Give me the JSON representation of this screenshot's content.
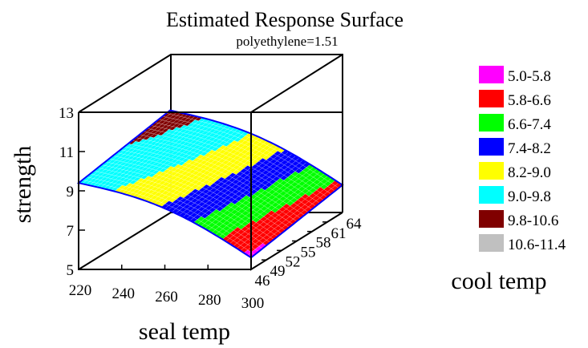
{
  "chart_data": {
    "type": "surface",
    "title": "Estimated Response Surface",
    "subtitle": "polyethylene=1.51",
    "xlabel": "seal temp",
    "ylabel": "cool temp",
    "zlabel": "strength",
    "x_ticks": [
      "220",
      "240",
      "260",
      "280",
      "300"
    ],
    "y_ticks": [
      "46",
      "49",
      "52",
      "55",
      "58",
      "61",
      "64"
    ],
    "z_ticks": [
      "5",
      "7",
      "9",
      "11",
      "13"
    ],
    "xlim": [
      220,
      300
    ],
    "ylim": [
      46,
      64
    ],
    "zlim": [
      5,
      13
    ],
    "legend_position": "right",
    "bands": [
      {
        "label": "5.0-5.8",
        "min": 5.0,
        "max": 5.8,
        "color": "#ff00ff"
      },
      {
        "label": "5.8-6.6",
        "min": 5.8,
        "max": 6.6,
        "color": "#ff0000"
      },
      {
        "label": "6.6-7.4",
        "min": 6.6,
        "max": 7.4,
        "color": "#00ff00"
      },
      {
        "label": "7.4-8.2",
        "min": 7.4,
        "max": 8.2,
        "color": "#0000ff"
      },
      {
        "label": "8.2-9.0",
        "min": 8.2,
        "max": 9.0,
        "color": "#ffff00"
      },
      {
        "label": "9.0-9.8",
        "min": 9.0,
        "max": 9.8,
        "color": "#00ffff"
      },
      {
        "label": "9.8-10.6",
        "min": 9.8,
        "max": 10.6,
        "color": "#800000"
      },
      {
        "label": "10.6-11.4",
        "min": 10.6,
        "max": 11.4,
        "color": "#c0c0c0"
      }
    ],
    "surface_corners": {
      "seal220_cool46": 9.4,
      "seal300_cool46": 5.6,
      "seal220_cool64": 10.2,
      "seal300_cool64": 6.4,
      "peak_strength": 11.3
    }
  }
}
